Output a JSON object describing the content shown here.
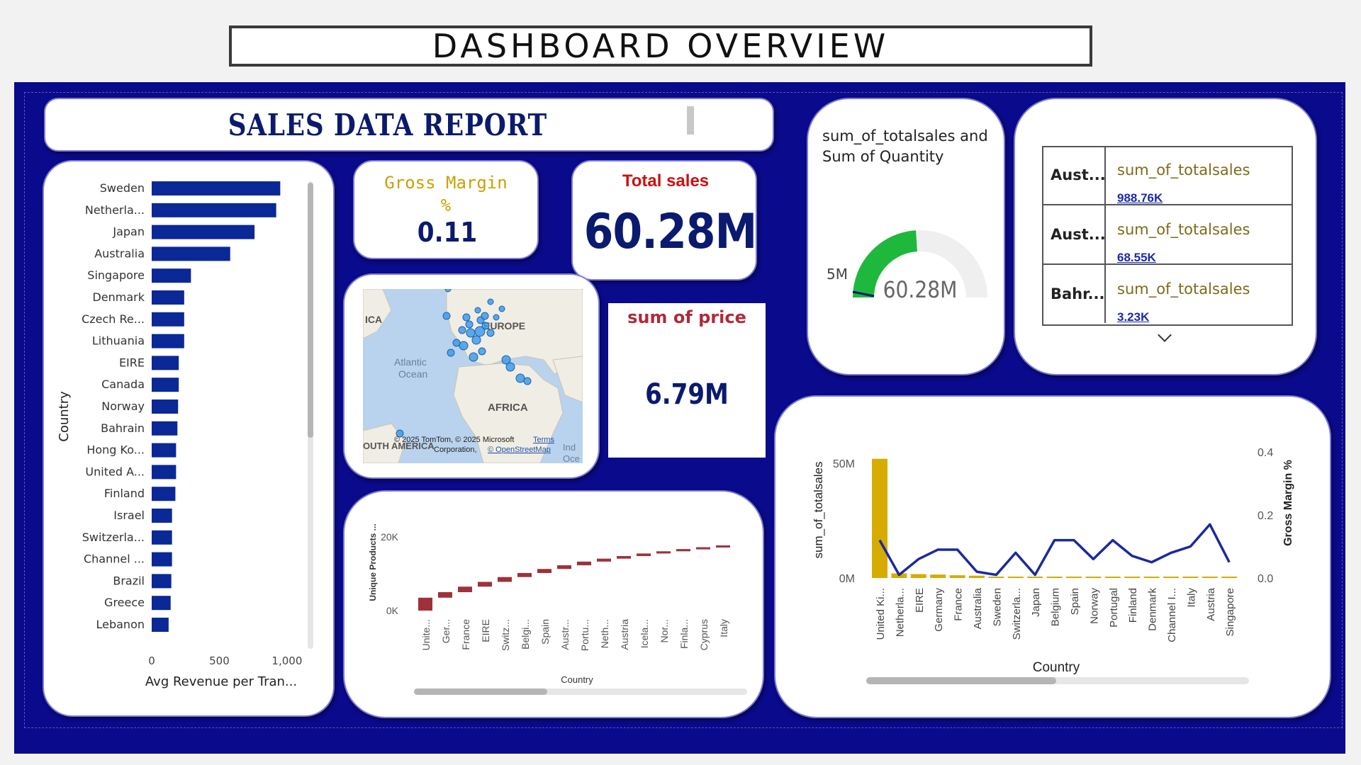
{
  "page_title": "DASHBOARD OVERVIEW",
  "report_title": "SALES DATA REPORT",
  "colors": {
    "navy": "#0a0a8c",
    "bar": "#0a2896",
    "gold": "#d6ac00",
    "red": "#a0303a",
    "green": "#1eb83c"
  },
  "gross_margin": {
    "label": "Gross Margin %",
    "value": "0.11"
  },
  "total_sales": {
    "label": "Total sales",
    "value": "60.28M"
  },
  "sum_price": {
    "label": "sum of price",
    "value": "6.79M"
  },
  "gauge": {
    "title": "sum_of_totalsales and Sum of Quantity",
    "value_label": "60.28M",
    "target_label": "5M",
    "fill_fraction": 0.48
  },
  "map": {
    "labels": {
      "europe": "EUROPE",
      "africa": "AFRICA",
      "atlantic": "Atlantic Ocean",
      "ica": "ICA",
      "south_america": "OUTH AMERICA",
      "ind": "Ind",
      "oce": "Oce"
    },
    "credits": {
      "line1": "© 2025 TomTom, © 2025 Microsoft",
      "line2": "Corporation,",
      "osm": "© OpenStreetMap",
      "terms": "Terms"
    }
  },
  "table": {
    "rows": [
      {
        "country": "Aust...",
        "field": "sum_of_totalsales",
        "value": "988.76K"
      },
      {
        "country": "Aust...",
        "field": "sum_of_totalsales",
        "value": "68.55K"
      },
      {
        "country": "Bahr...",
        "field": "sum_of_totalsales",
        "value": "3.23K"
      }
    ]
  },
  "chart_data": [
    {
      "type": "bar",
      "orientation": "horizontal",
      "categories": [
        "Sweden",
        "Netherla...",
        "Japan",
        "Australia",
        "Singapore",
        "Denmark",
        "Czech Re...",
        "Lithuania",
        "EIRE",
        "Canada",
        "Norway",
        "Bahrain",
        "Hong Ko...",
        "United A...",
        "Finland",
        "Israel",
        "Switzerla...",
        "Channel ...",
        "Brazil",
        "Greece",
        "Lebanon"
      ],
      "values": [
        950,
        920,
        760,
        580,
        290,
        240,
        240,
        240,
        200,
        200,
        195,
        190,
        180,
        180,
        175,
        150,
        150,
        150,
        145,
        140,
        125
      ],
      "xlabel": "Avg Revenue per Tran...",
      "ylabel": "Country",
      "xticks": [
        "0",
        "500",
        "1,000"
      ],
      "xlim": [
        0,
        1100
      ]
    },
    {
      "type": "waterfall",
      "categories": [
        "Unite...",
        "Ger...",
        "France",
        "EIRE",
        "Switz...",
        "Belgi...",
        "Spain",
        "Austr...",
        "Portu...",
        "Neth...",
        "Austria",
        "Icela...",
        "Nor...",
        "Finla...",
        "Cyprus",
        "Italy"
      ],
      "cumulative": [
        3500,
        5000,
        6500,
        7800,
        9100,
        10200,
        11300,
        12300,
        13300,
        14100,
        14800,
        15500,
        16100,
        16700,
        17200,
        17700
      ],
      "xlabel": "Country",
      "ylabel": "Unique Products ...",
      "yticks": [
        "20K",
        "0K"
      ],
      "ylim": [
        0,
        25000
      ]
    },
    {
      "type": "combo",
      "categories": [
        "United Ki...",
        "Netherla...",
        "EIRE",
        "Germany",
        "France",
        "Australia",
        "Sweden",
        "Switzerla...",
        "Japan",
        "Belgium",
        "Spain",
        "Norway",
        "Portugal",
        "Finland",
        "Denmark",
        "Channel I...",
        "Italy",
        "Austria",
        "Singapore"
      ],
      "series": [
        {
          "name": "sum_of_totalsales",
          "type": "bar",
          "axis": "left",
          "values": [
            52000000,
            2000000,
            1700000,
            1500000,
            1200000,
            1000000,
            400000,
            350000,
            300000,
            280000,
            250000,
            220000,
            200000,
            180000,
            160000,
            150000,
            120000,
            100000,
            80000
          ]
        },
        {
          "name": "Gross Margin %",
          "type": "line",
          "axis": "right",
          "values": [
            0.12,
            0.01,
            0.06,
            0.09,
            0.09,
            0.02,
            0.01,
            0.08,
            0.01,
            0.12,
            0.12,
            0.06,
            0.12,
            0.07,
            0.05,
            0.08,
            0.1,
            0.17,
            0.05
          ]
        }
      ],
      "xlabel": "Country",
      "ylabel": "sum_of_totalsales",
      "y2label": "Gross Margin %",
      "yticks": [
        "50M",
        "0M"
      ],
      "y2ticks": [
        "0.4",
        "0.2",
        "0.0"
      ],
      "ylim": [
        0,
        55000000
      ],
      "y2lim": [
        0,
        0.4
      ]
    }
  ]
}
